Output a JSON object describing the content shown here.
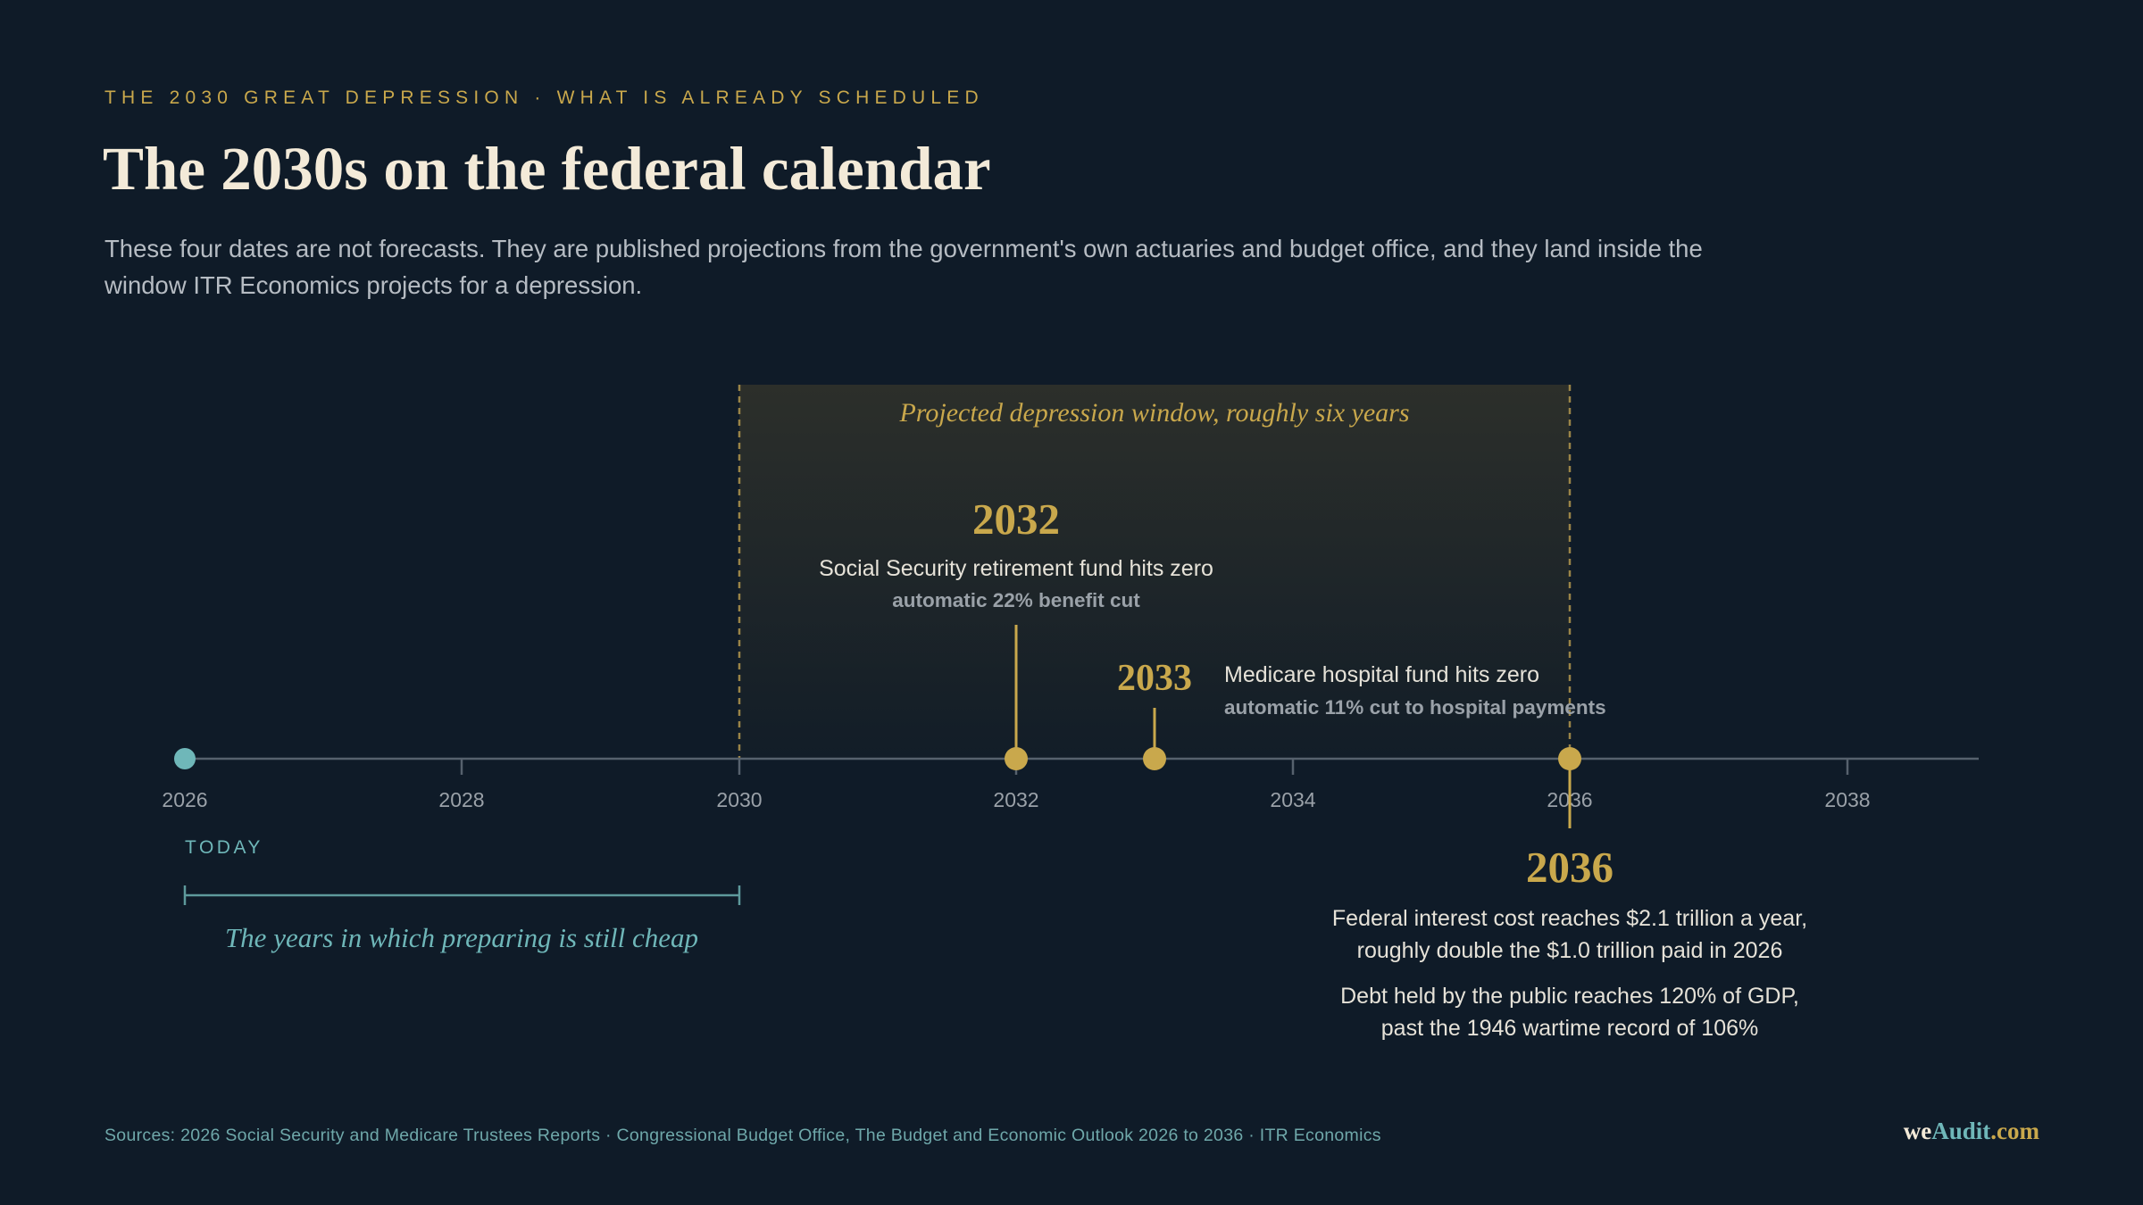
{
  "header": {
    "eyebrow": "THE 2030 GREAT DEPRESSION · WHAT IS ALREADY SCHEDULED",
    "title": "The 2030s on the federal calendar",
    "subtitle": "These four dates are not forecasts. They are published projections from the government's own actuaries and budget office, and they land inside the window ITR Economics projects for a depression."
  },
  "timeline": {
    "axis_range": [
      2026,
      2039
    ],
    "ticks": [
      "2026",
      "2028",
      "2030",
      "2032",
      "2034",
      "2036",
      "2038"
    ],
    "today": {
      "year": 2026,
      "label": "TODAY"
    },
    "window": {
      "start": 2030,
      "end": 2036,
      "label": "Projected depression window, roughly six years"
    },
    "preparing": {
      "start": 2026,
      "end": 2030,
      "label": "The years in which preparing is still cheap"
    },
    "events": [
      {
        "year": "2032",
        "line1": "Social Security retirement fund hits zero",
        "line2": "automatic 22% benefit cut"
      },
      {
        "year": "2033",
        "line1": "Medicare hospital fund hits zero",
        "line2": "automatic 11% cut to hospital payments"
      },
      {
        "year": "2036",
        "para1": [
          "Federal interest cost reaches $2.1 trillion a year,",
          "roughly double the $1.0 trillion paid in 2026"
        ],
        "para2": [
          "Debt held by the public reaches 120% of GDP,",
          "past the 1946 wartime record of 106%"
        ]
      }
    ]
  },
  "footer": {
    "sources": "Sources: 2026 Social Security and Medicare Trustees Reports · Congressional Budget Office, The Budget and Economic Outlook 2026 to 2036 · ITR Economics",
    "brand": {
      "we": "we",
      "audit": "Audit",
      "com": ".com"
    }
  },
  "colors": {
    "background": "#0f1b28",
    "gold": "#c9a84c",
    "teal": "#6fb7b9",
    "axis": "#56616d",
    "text_light": "#e6e2d8",
    "text_muted": "#9aa1a8"
  }
}
